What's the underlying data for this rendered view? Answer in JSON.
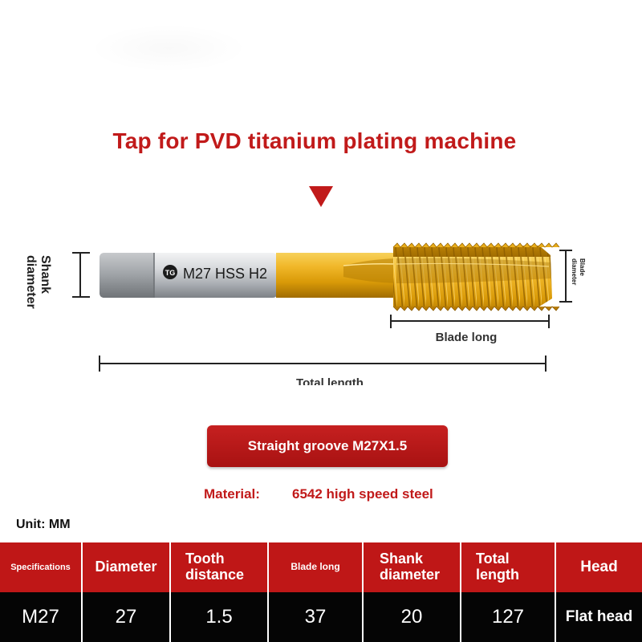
{
  "title": "Tap for PVD titanium plating machine",
  "tool": {
    "marking": "M27 HSS H2",
    "logo_text": "TG",
    "colors": {
      "gold": "#e2a50c",
      "shank": "#c9ccd0",
      "accent": "#c11a1a"
    }
  },
  "dimensions": {
    "shank_diameter_line1": "Shank",
    "shank_diameter_line2": "diameter",
    "blade_diameter_line1": "Blade",
    "blade_diameter_line2": "diameter",
    "blade_long": "Blade long",
    "total_length": "Total length"
  },
  "groove_label": "Straight groove M27X1.5",
  "material": {
    "label": "Material:",
    "value": "6542 high speed steel"
  },
  "unit": "Unit: MM",
  "table": {
    "headers": [
      "Specifications",
      "Diameter",
      "Tooth distance",
      "Blade long",
      "Shank diameter",
      "Total length",
      "Head"
    ],
    "row": [
      "M27",
      "27",
      "1.5",
      "37",
      "20",
      "127",
      "Flat head"
    ]
  },
  "icons": [
    "down-triangle-icon",
    "brand-logo-icon"
  ]
}
